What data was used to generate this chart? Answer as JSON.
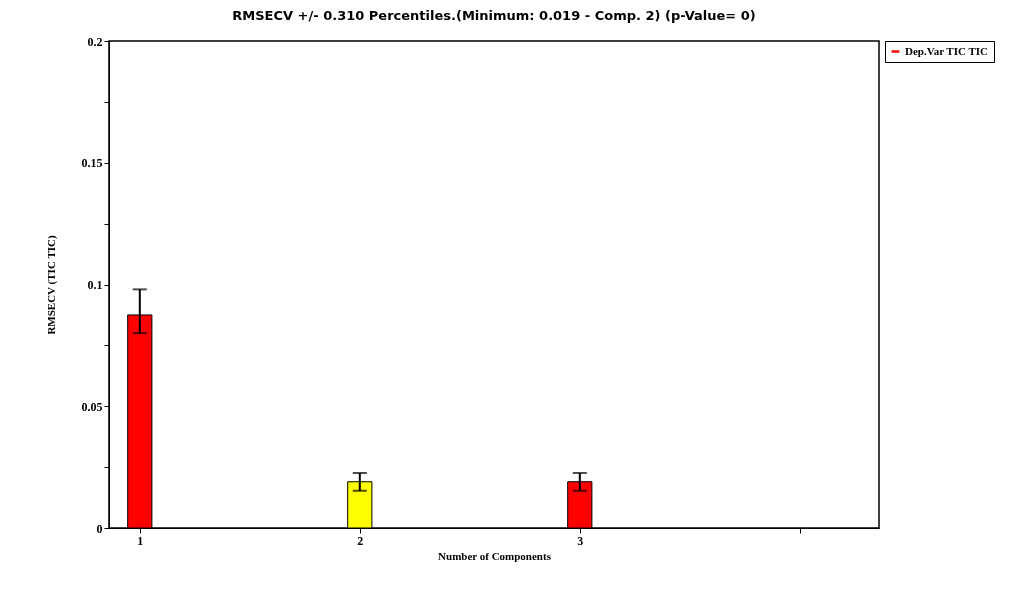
{
  "chart_data": {
    "type": "bar",
    "title": "RMSECV +/- 0.310 Percentiles.(Minimum: 0.019 - Comp. 2) (p-Value= 0)",
    "xlabel": "Number of Components",
    "ylabel": "RMSECV (TIC TIC)",
    "x": [
      1,
      2,
      3
    ],
    "series": [
      {
        "name": "Dep.Var TIC TIC",
        "color": "#ff0000",
        "colors": [
          "#ff0000",
          "#ffff00",
          "#ff0000"
        ],
        "values": [
          0.0875,
          0.019,
          0.019
        ],
        "errors": [
          [
            0.08,
            0.098
          ],
          [
            0.0153,
            0.0226
          ],
          [
            0.0153,
            0.0226
          ]
        ]
      }
    ],
    "xlim": [
      0.86,
      4.36
    ],
    "xticks": [
      1,
      2,
      3,
      {
        "value": 4,
        "label": null
      }
    ],
    "ylim": [
      0,
      0.2
    ],
    "yticks": [
      0,
      {
        "value": 0.025,
        "label": null
      },
      0.05,
      {
        "value": 0.075,
        "label": null
      },
      0.1,
      {
        "value": 0.125,
        "label": null
      },
      0.15,
      {
        "value": 0.175,
        "label": null
      },
      0.2
    ],
    "grid": false,
    "legend": "top right"
  }
}
